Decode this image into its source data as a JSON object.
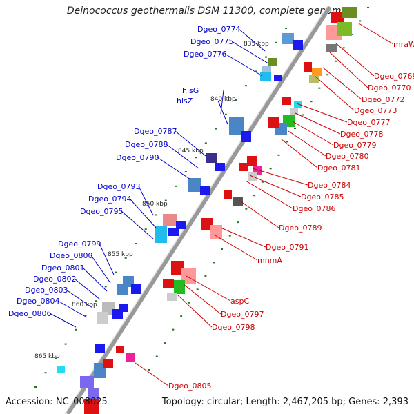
{
  "title": "Deinococcus geothermalis DSM 11300, complete genome",
  "footer": {
    "accession": "Accession: NC_008025",
    "topology": "Topology: circular; Length: 2,467,205 bp; Genes: 2,393"
  },
  "ticks": [
    "835 kbp",
    "840 kbp",
    "845 kbp",
    "850 kbp",
    "855 kbp",
    "860 kbp",
    "865 kbp"
  ],
  "blue_labels": [
    "Dgeo_0774",
    "Dgeo_0775",
    "Dgeo_0776",
    "hisG",
    "hisZ",
    "Dgeo_0787",
    "Dgeo_0788",
    "Dgeo_0790",
    "Dgeo_0793",
    "Dgeo_0794",
    "Dgeo_0795",
    "Dgeo_0799",
    "Dgeo_0800",
    "Dgeo_0801",
    "Dgeo_0802",
    "Dgeo_0803",
    "Dgeo_0804",
    "Dgeo_0806"
  ],
  "red_labels": [
    "mraW",
    "Dgeo_0769",
    "Dgeo_0770",
    "Dgeo_0772",
    "Dgeo_0773",
    "Dgeo_0777",
    "Dgeo_0778",
    "Dgeo_0779",
    "Dgeo_0780",
    "Dgeo_0781",
    "Dgeo_0784",
    "Dgeo_0785",
    "Dgeo_0786",
    "Dgeo_0789",
    "Dgeo_0791",
    "mnmA",
    "aspC",
    "Dgeo_0797",
    "Dgeo_0798",
    "Dgeo_0805"
  ],
  "colors": {
    "forward_strand": "#0000ee",
    "reverse_strand": "#ee0000",
    "label_blue": "#0000cc",
    "label_red": "#cc0000",
    "backbone": "#888888",
    "tick_dots": "#227722"
  }
}
